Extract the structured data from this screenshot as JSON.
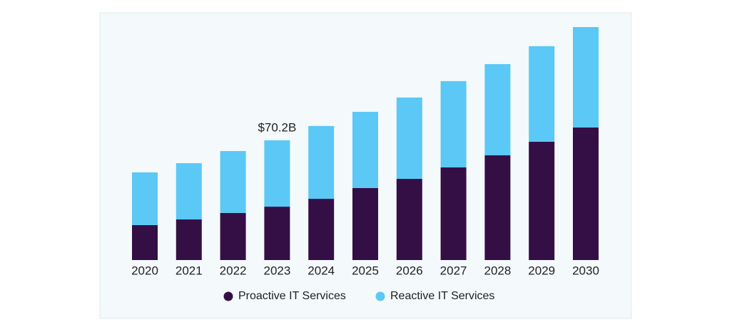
{
  "chart_data": {
    "type": "stacked-bar",
    "categories": [
      "2020",
      "2021",
      "2022",
      "2023",
      "2024",
      "2025",
      "2026",
      "2027",
      "2028",
      "2029",
      "2030"
    ],
    "series": [
      {
        "name": "Proactive IT Services",
        "color": "#340f45",
        "values": [
          20.5,
          23.8,
          27.6,
          31.3,
          35.9,
          42.2,
          47.6,
          54.3,
          61.4,
          69.4,
          77.7
        ]
      },
      {
        "name": "Reactive IT Services",
        "color": "#5bc8f5",
        "values": [
          30.9,
          33.0,
          36.3,
          38.9,
          42.7,
          44.7,
          47.7,
          50.6,
          53.5,
          56.0,
          58.9
        ]
      }
    ],
    "annotation": {
      "category": "2023",
      "value": 70.2,
      "label": "$70.2B"
    }
  }
}
